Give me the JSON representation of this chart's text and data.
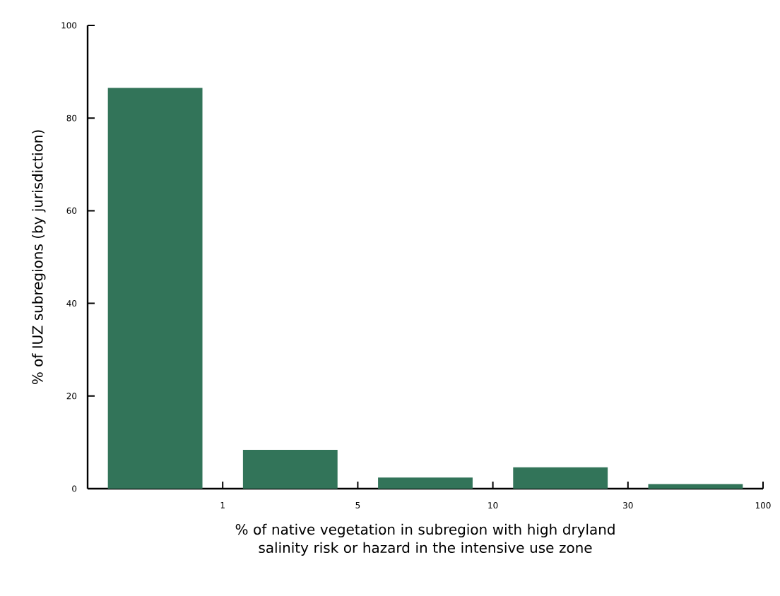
{
  "chart_data": {
    "type": "bar",
    "categories": [
      null,
      null,
      null,
      null,
      null
    ],
    "values": [
      86.5,
      8.4,
      2.4,
      4.6,
      1.0
    ],
    "color": "#327459",
    "ylim": [
      0,
      100
    ],
    "yticks": [
      0,
      20,
      40,
      60,
      80,
      100
    ],
    "xlabel": "% of native vegetation in subregion with high dryland salinity risk or hazard in the intensive use zone",
    "ylabel": "% of IUZ subregions (by jurisdiction)",
    "annotations": [
      "1",
      "5",
      "10",
      "30",
      "100"
    ]
  }
}
